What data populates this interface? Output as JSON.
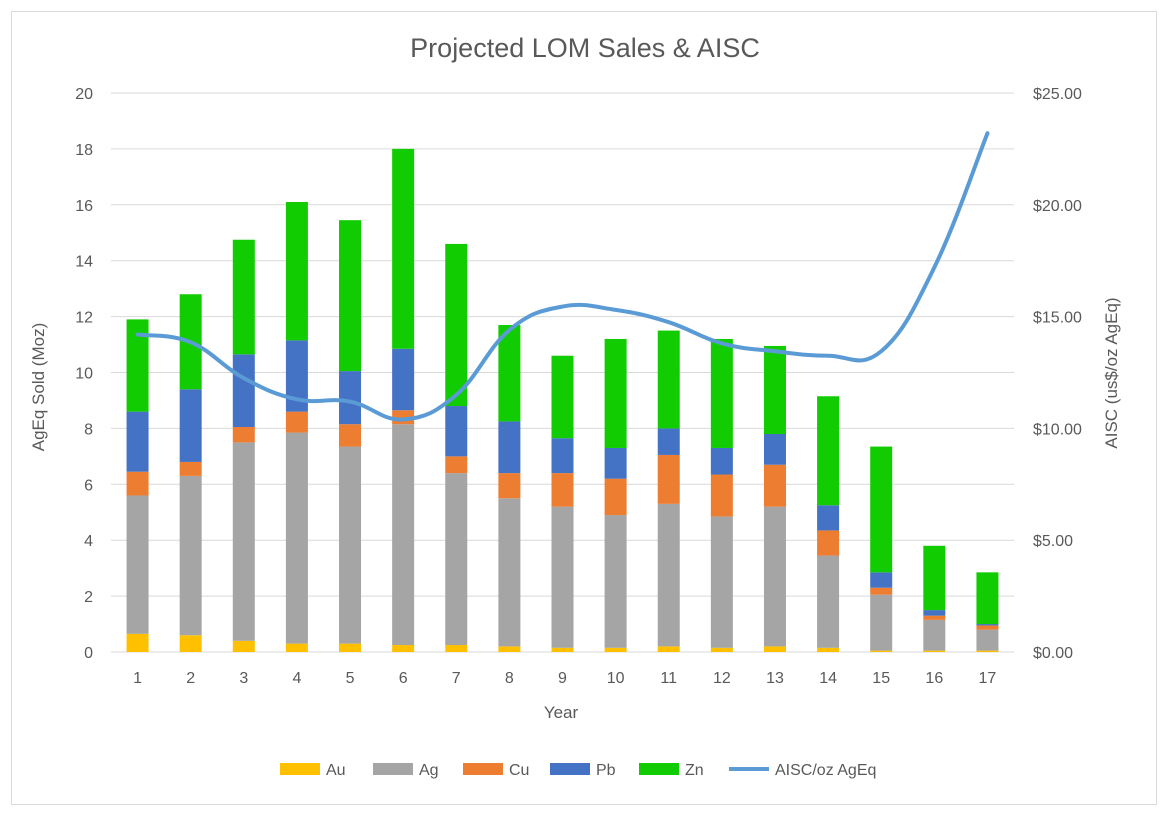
{
  "chart_data": {
    "type": "bar",
    "stacked": true,
    "title": "Projected LOM Sales & AISC",
    "xlabel": "Year",
    "ylabel": "AgEq Sold (Moz)",
    "y2label": "AISC (us$/oz AgEq)",
    "ylim": [
      0,
      20
    ],
    "y2lim": [
      0,
      25
    ],
    "yticks": [
      0,
      2,
      4,
      6,
      8,
      10,
      12,
      14,
      16,
      18,
      20
    ],
    "y2ticks": [
      "$0.00",
      "$5.00",
      "$10.00",
      "$15.00",
      "$20.00",
      "$25.00"
    ],
    "categories": [
      "1",
      "2",
      "3",
      "4",
      "5",
      "6",
      "7",
      "8",
      "9",
      "10",
      "11",
      "12",
      "13",
      "14",
      "15",
      "16",
      "17"
    ],
    "grid": true,
    "legend_position": "bottom",
    "series": [
      {
        "name": "Au",
        "color": "#ffc000",
        "values": [
          0.65,
          0.6,
          0.4,
          0.3,
          0.3,
          0.25,
          0.25,
          0.2,
          0.15,
          0.15,
          0.2,
          0.15,
          0.2,
          0.15,
          0.05,
          0.05,
          0.05
        ]
      },
      {
        "name": "Ag",
        "color": "#a5a5a5",
        "values": [
          4.95,
          5.7,
          7.1,
          7.55,
          7.05,
          7.9,
          6.15,
          5.3,
          5.05,
          4.75,
          5.1,
          4.7,
          5.0,
          3.3,
          2.0,
          1.1,
          0.75
        ]
      },
      {
        "name": "Cu",
        "color": "#ed7d31",
        "values": [
          0.85,
          0.5,
          0.55,
          0.75,
          0.8,
          0.5,
          0.6,
          0.9,
          1.2,
          1.3,
          1.75,
          1.5,
          1.5,
          0.9,
          0.25,
          0.15,
          0.15
        ]
      },
      {
        "name": "Pb",
        "color": "#4472c4",
        "values": [
          2.15,
          2.6,
          2.6,
          2.55,
          1.9,
          2.2,
          1.8,
          1.85,
          1.25,
          1.1,
          0.95,
          0.95,
          1.1,
          0.9,
          0.55,
          0.2,
          0.05
        ]
      },
      {
        "name": "Zn",
        "color": "#11cc00",
        "values": [
          3.3,
          3.4,
          4.1,
          4.95,
          5.4,
          7.15,
          5.8,
          3.45,
          2.95,
          3.9,
          3.5,
          3.9,
          3.15,
          3.9,
          4.5,
          2.3,
          1.85
        ]
      }
    ],
    "line_series": {
      "name": "AISC/oz AgEq",
      "color": "#5b9bd5",
      "axis": "secondary",
      "values": [
        14.2,
        13.85,
        12.25,
        11.3,
        11.2,
        10.4,
        11.5,
        14.4,
        15.45,
        15.3,
        14.75,
        13.8,
        13.45,
        13.25,
        13.45,
        17.2,
        23.2
      ]
    }
  }
}
